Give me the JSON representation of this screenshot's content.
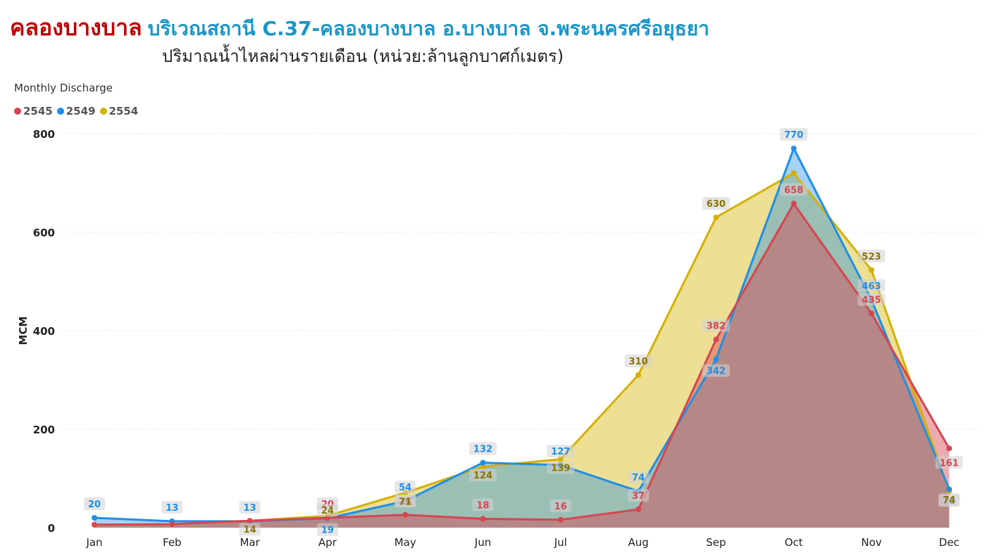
{
  "header": {
    "title_main": "คลองบางบาล",
    "title_sub": "บริเวณสถานี C.37-คลองบางบาล อ.บางบาล จ.พระนครศรีอยุธยา",
    "subtitle": "ปริมาณน้ำไหลผ่านรายเดือน (หน่วย:ล้านลูกบาศก์เมตร)"
  },
  "chart_data": {
    "type": "area",
    "title": "Monthly Discharge",
    "ylabel": "MCM",
    "xlabel": "",
    "ylim": [
      0,
      800
    ],
    "yticks": [
      "0",
      "200",
      "400",
      "600",
      "800"
    ],
    "grid": true,
    "legend_position": "top-left",
    "categories": [
      "Jan",
      "Feb",
      "Mar",
      "Apr",
      "May",
      "Jun",
      "Jul",
      "Aug",
      "Sep",
      "Oct",
      "Nov",
      "Dec"
    ],
    "series": [
      {
        "name": "2545",
        "color": "#d64550",
        "values": [
          6,
          7,
          14,
          20,
          26,
          18,
          16,
          37,
          382,
          658,
          435,
          161
        ],
        "labels": [
          "",
          "",
          "",
          "20",
          "26",
          "18",
          "16",
          "37",
          "382",
          "658",
          "435",
          "161"
        ]
      },
      {
        "name": "2549",
        "color": "#1f8fe5",
        "values": [
          20,
          13,
          13,
          19,
          54,
          132,
          127,
          74,
          342,
          770,
          463,
          78
        ],
        "labels": [
          "20",
          "13",
          "13",
          "19",
          "54",
          "132",
          "127",
          "74",
          "342",
          "770",
          "463",
          "78"
        ]
      },
      {
        "name": "2554",
        "color": "#d4b000",
        "values": [
          6,
          7,
          14,
          24,
          71,
          124,
          139,
          310,
          630,
          720,
          523,
          74
        ],
        "labels": [
          "",
          "",
          "14",
          "24",
          "71",
          "124",
          "139",
          "310",
          "630",
          "",
          "523",
          "74"
        ]
      }
    ]
  }
}
